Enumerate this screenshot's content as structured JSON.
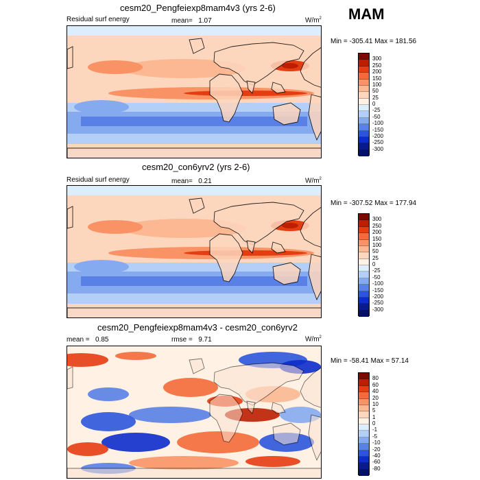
{
  "season_label": "MAM",
  "units_base": "W/m",
  "units_exp": "2",
  "panels": [
    {
      "title": "cesm20_Pengfeiexp8mam4v3 (yrs 2-6)",
      "subtitle_left": "Residual surf energy",
      "stat_label": "mean=",
      "stat_value": "1.07",
      "minmax": "Min = -305.41 Max = 181.56",
      "colorbar_ticks": [
        "300",
        "250",
        "200",
        "150",
        "100",
        "50",
        "25",
        "0",
        "-25",
        "-50",
        "-100",
        "-150",
        "-200",
        "-250",
        "-300"
      ],
      "colorbar_colors": [
        "#7a0a00",
        "#bd1e00",
        "#e53d12",
        "#f46a3a",
        "#f99365",
        "#fbb892",
        "#fdd6be",
        "#fff1e4",
        "#dcedfc",
        "#b3cff7",
        "#86aaf0",
        "#5880e6",
        "#2b55dc",
        "#0d2ccb",
        "#081a8c",
        "#05106a"
      ],
      "pattern": "abs"
    },
    {
      "title": "cesm20_con6yrv2 (yrs 2-6)",
      "subtitle_left": "Residual surf energy",
      "stat_label": "mean=",
      "stat_value": "0.21",
      "minmax": "Min = -307.52 Max = 177.94",
      "colorbar_ticks": [
        "300",
        "250",
        "200",
        "150",
        "100",
        "50",
        "25",
        "0",
        "-25",
        "-50",
        "-100",
        "-150",
        "-200",
        "-250",
        "-300"
      ],
      "colorbar_colors": [
        "#7a0a00",
        "#bd1e00",
        "#e53d12",
        "#f46a3a",
        "#f99365",
        "#fbb892",
        "#fdd6be",
        "#fff1e4",
        "#dcedfc",
        "#b3cff7",
        "#86aaf0",
        "#5880e6",
        "#2b55dc",
        "#0d2ccb",
        "#081a8c",
        "#05106a"
      ],
      "pattern": "abs"
    },
    {
      "title": "cesm20_Pengfeiexp8mam4v3 - cesm20_con6yrv2",
      "subtitle_left": "mean =",
      "subtitle_left_value": "0.85",
      "stat_label": "rmse =",
      "stat_value": "9.71",
      "minmax": "Min = -58.41 Max =  57.14",
      "colorbar_ticks": [
        "80",
        "60",
        "40",
        "20",
        "10",
        "5",
        "1",
        "0",
        "-1",
        "-5",
        "-10",
        "-20",
        "-40",
        "-60",
        "-80"
      ],
      "colorbar_colors": [
        "#7a0a00",
        "#bd1e00",
        "#e53d12",
        "#f46a3a",
        "#f99365",
        "#fbb892",
        "#fdd6be",
        "#fff1e4",
        "#dcedfc",
        "#b3cff7",
        "#86aaf0",
        "#5880e6",
        "#2b55dc",
        "#0d2ccb",
        "#081a8c",
        "#05106a"
      ],
      "pattern": "diff"
    }
  ]
}
